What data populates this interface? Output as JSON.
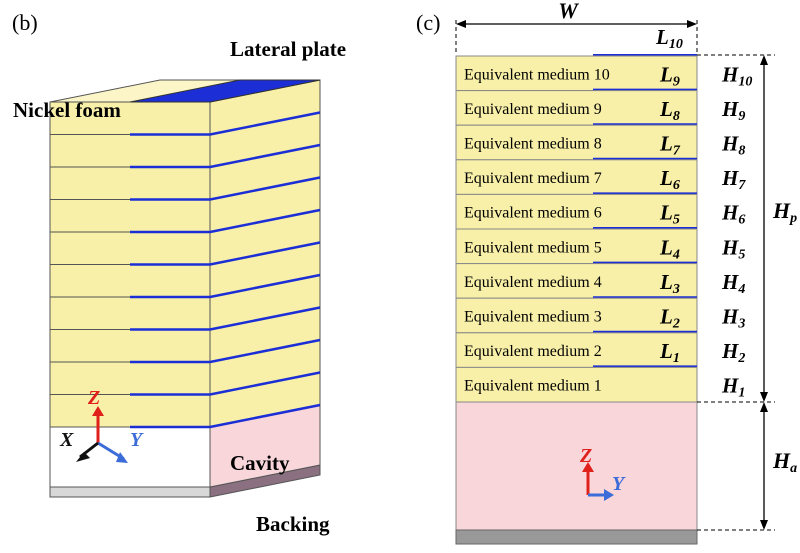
{
  "panel_b": {
    "label": "(b)",
    "lateral_plate": "Lateral plate",
    "nickel_foam": "Nickel foam",
    "cavity": "Cavity",
    "backing": "Backing",
    "axes": {
      "z": "Z",
      "x": "X",
      "y": "Y"
    }
  },
  "panel_c": {
    "label": "(c)",
    "width_label": "W",
    "media": [
      "Equivalent medium 10",
      "Equivalent medium 9",
      "Equivalent medium 8",
      "Equivalent medium 7",
      "Equivalent medium 6",
      "Equivalent medium 5",
      "Equivalent medium 4",
      "Equivalent medium 3",
      "Equivalent medium 2",
      "Equivalent medium 1"
    ],
    "plate_labels": [
      {
        "base": "L",
        "sub": "10"
      },
      {
        "base": "L",
        "sub": "9"
      },
      {
        "base": "L",
        "sub": "8"
      },
      {
        "base": "L",
        "sub": "7"
      },
      {
        "base": "L",
        "sub": "6"
      },
      {
        "base": "L",
        "sub": "5"
      },
      {
        "base": "L",
        "sub": "4"
      },
      {
        "base": "L",
        "sub": "3"
      },
      {
        "base": "L",
        "sub": "2"
      },
      {
        "base": "L",
        "sub": "1"
      }
    ],
    "height_labels": [
      {
        "base": "H",
        "sub": "10"
      },
      {
        "base": "H",
        "sub": "9"
      },
      {
        "base": "H",
        "sub": "8"
      },
      {
        "base": "H",
        "sub": "7"
      },
      {
        "base": "H",
        "sub": "6"
      },
      {
        "base": "H",
        "sub": "5"
      },
      {
        "base": "H",
        "sub": "4"
      },
      {
        "base": "H",
        "sub": "3"
      },
      {
        "base": "H",
        "sub": "2"
      },
      {
        "base": "H",
        "sub": "1"
      }
    ],
    "hp": {
      "base": "H",
      "sub": "p"
    },
    "ha": {
      "base": "H",
      "sub": "a"
    },
    "axes": {
      "z": "Z",
      "y": "Y"
    }
  },
  "colors": {
    "foam": "#f8f0a8",
    "foam_light": "#fbf5c8",
    "plate": "#1c2fd6",
    "cavity": "#f8d6da",
    "backing": "#999999",
    "axis_red": "#e0201a",
    "axis_blue": "#3c6cd8"
  }
}
